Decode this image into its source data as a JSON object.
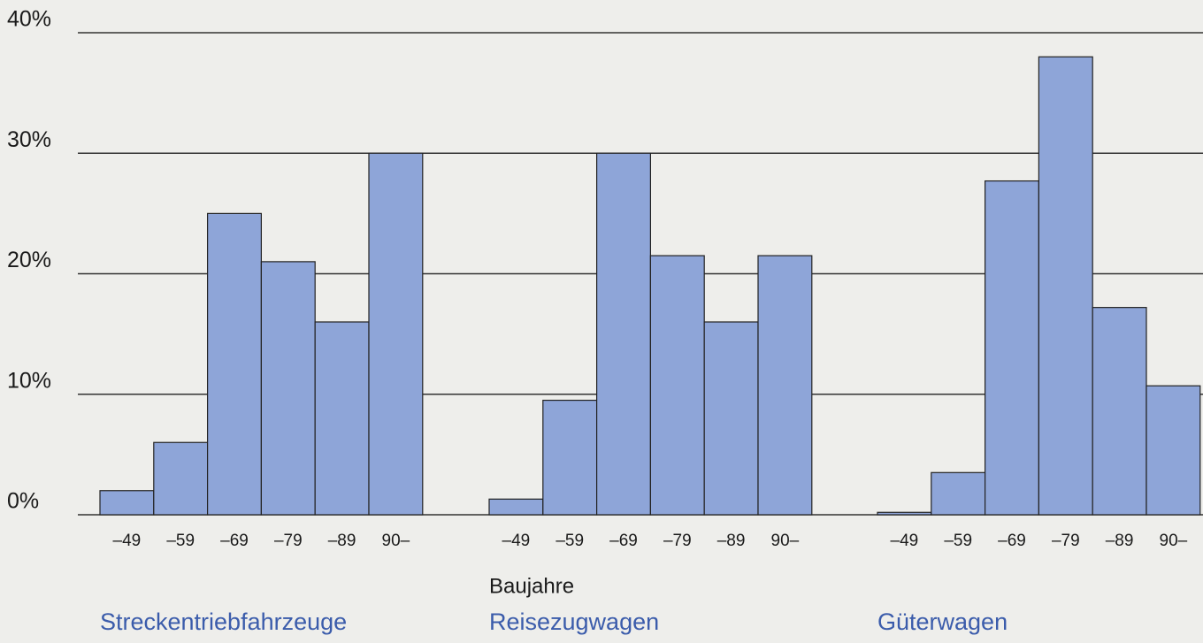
{
  "chart_data": {
    "type": "bar",
    "xlabel": "Baujahre",
    "categories": [
      "–49",
      "–59",
      "–69",
      "–79",
      "–89",
      "90–"
    ],
    "series": [
      {
        "name": "Streckentriebfahrzeuge",
        "color": "#8ea5d8",
        "values": [
          2,
          6,
          25,
          21,
          16,
          30
        ]
      },
      {
        "name": "Reisezugwagen",
        "color": "#8ea5d8",
        "values": [
          1.3,
          9.5,
          30,
          21.5,
          16,
          21.5
        ]
      },
      {
        "name": "Güterwagen",
        "color": "#8ea5d8",
        "values": [
          0.2,
          3.5,
          27.7,
          38,
          17.2,
          10.7
        ]
      }
    ],
    "ylim": [
      0,
      40
    ],
    "yticks": [
      {
        "value": 0,
        "label": "0%"
      },
      {
        "value": 10,
        "label": "10%"
      },
      {
        "value": 20,
        "label": "20%"
      },
      {
        "value": 30,
        "label": "30%"
      },
      {
        "value": 40,
        "label": "40%"
      }
    ],
    "grid": true
  }
}
